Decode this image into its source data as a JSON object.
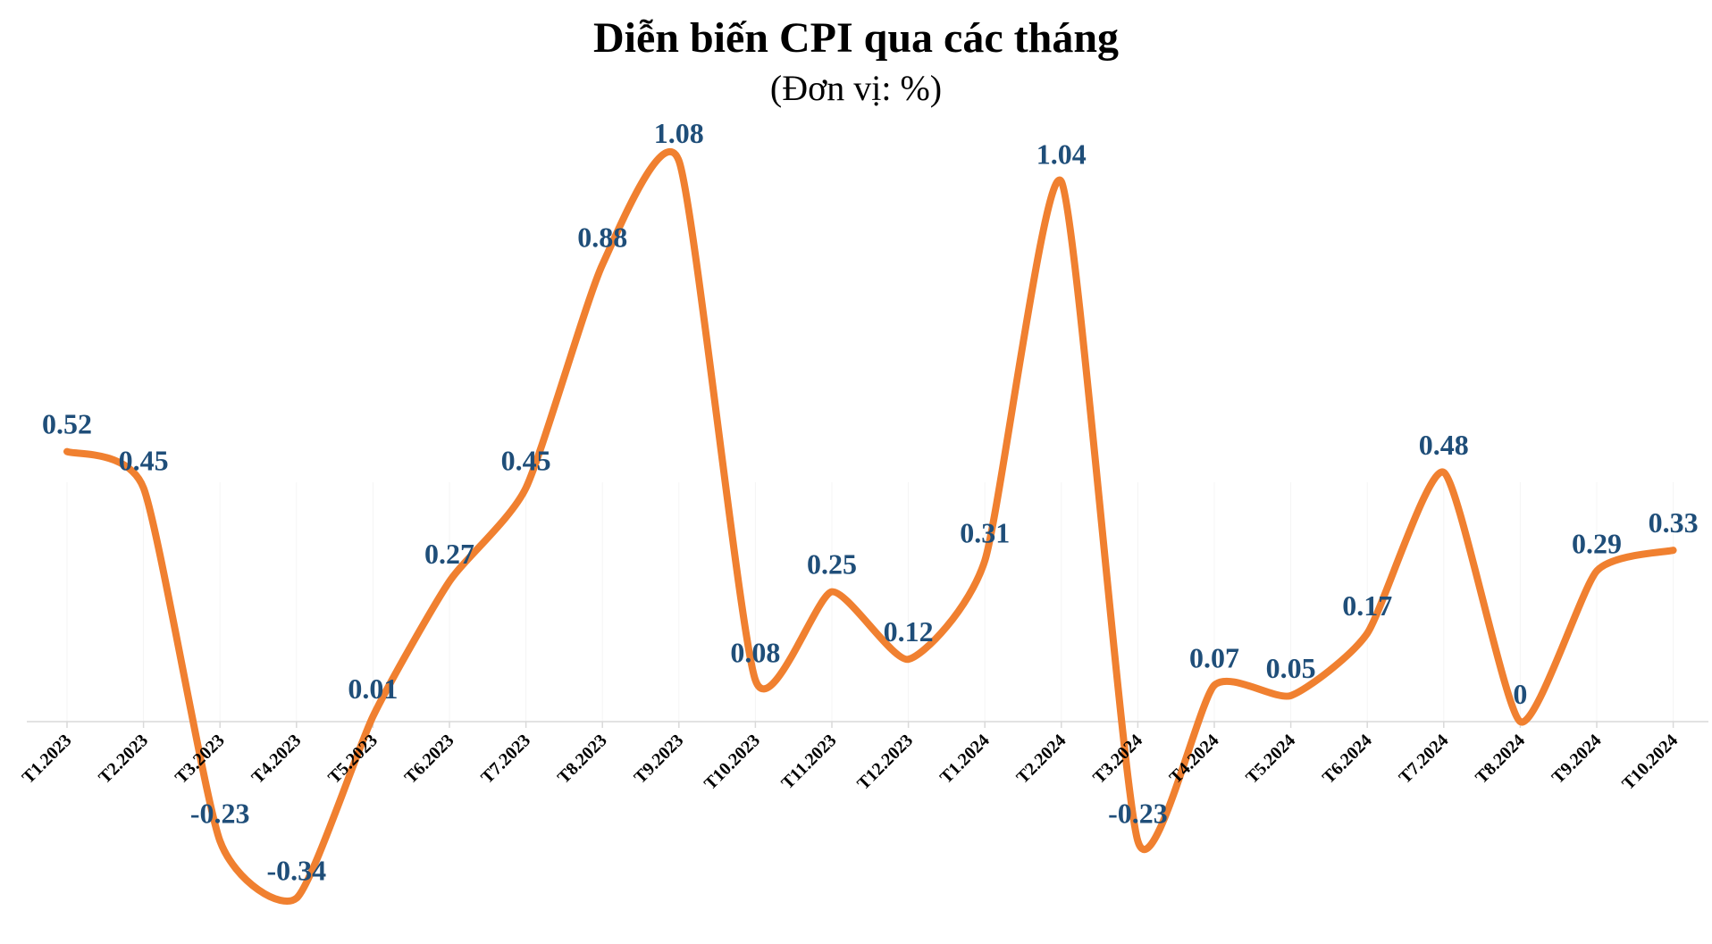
{
  "chart_data": {
    "type": "line",
    "title": "Diễn biến CPI qua các tháng",
    "subtitle": "(Đơn vị: %)",
    "categories": [
      "T1.2023",
      "T2.2023",
      "T3.2023",
      "T4.2023",
      "T5.2023",
      "T6.2023",
      "T7.2023",
      "T8.2023",
      "T9.2023",
      "T10.2023",
      "T11.2023",
      "T12.2023",
      "T1.2024",
      "T2.2024",
      "T3.2024",
      "T4.2024",
      "T5.2024",
      "T6.2024",
      "T7.2024",
      "T8.2024",
      "T9.2024",
      "T10.2024"
    ],
    "series": [
      {
        "values": [
          0.52,
          0.45,
          -0.23,
          -0.34,
          0.01,
          0.27,
          0.45,
          0.88,
          1.08,
          0.08,
          0.25,
          0.12,
          0.31,
          1.04,
          -0.23,
          0.07,
          0.05,
          0.17,
          0.48,
          0,
          0.29,
          0.33
        ],
        "labels": [
          "0.52",
          "0.45",
          "-0.23",
          "-0.34",
          "0.01",
          "0.27",
          "0.45",
          "0.88",
          "1.08",
          "0.08",
          "0.25",
          "0.12",
          "0.31",
          "1.04",
          "-0.23",
          "0.07",
          "0.05",
          "0.17",
          "0.48",
          "0",
          "0.29",
          "0.33"
        ]
      }
    ],
    "ylim": [
      -0.34,
      1.08
    ],
    "grid": false,
    "legend": "none",
    "colors": {
      "line": "#F08030",
      "labels": "#1F4E79",
      "axis": "#D9D9D9"
    }
  }
}
